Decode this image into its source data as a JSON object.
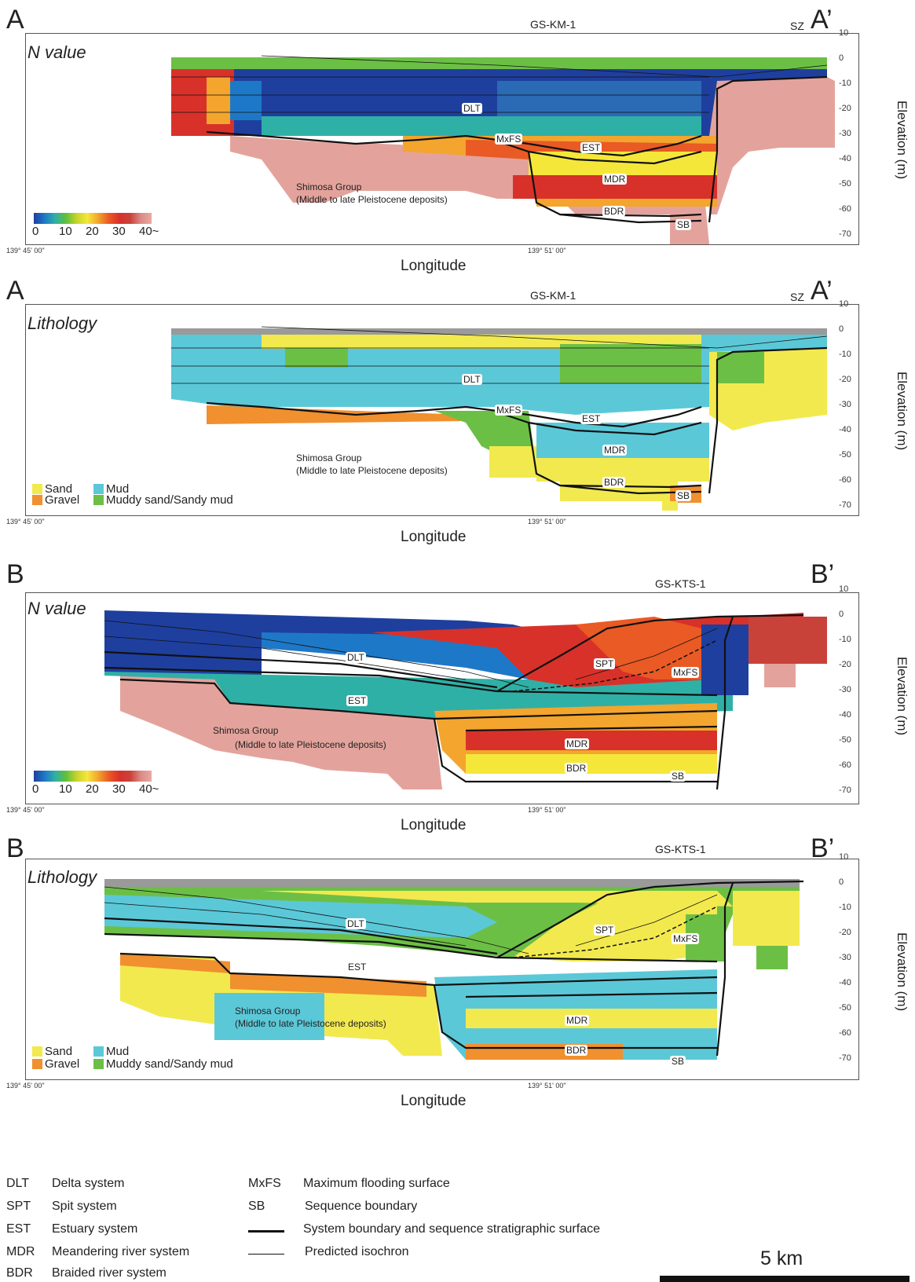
{
  "panels": [
    {
      "letter": "A",
      "letter_end": "A’",
      "title": "N value",
      "well": "GS-KM-1",
      "sz": "SZ",
      "x_start": "139° 45' 00\"",
      "x_mid": "139° 51' 00\"",
      "xlabel": "Longitude",
      "ylabel": "Elevation (m)",
      "yticks": [
        "10",
        "0",
        "-10",
        "-20",
        "-30",
        "-40",
        "-50",
        "-60",
        "-70"
      ],
      "units": [
        "DLT",
        "MxFS",
        "EST",
        "MDR",
        "BDR",
        "SB"
      ],
      "shimosa": [
        "Shimosa Group",
        "(Middle to late Pleistocene deposits)"
      ],
      "colorbar_labels": [
        "0",
        "10",
        "20",
        "30",
        "40~"
      ]
    },
    {
      "letter": "A",
      "letter_end": "A’",
      "title": "Lithology",
      "well": "GS-KM-1",
      "sz": "SZ",
      "x_start": "139° 45' 00\"",
      "x_mid": "139° 51' 00\"",
      "xlabel": "Longitude",
      "ylabel": "Elevation (m)",
      "yticks": [
        "10",
        "0",
        "-10",
        "-20",
        "-30",
        "-40",
        "-50",
        "-60",
        "-70"
      ],
      "units": [
        "DLT",
        "MxFS",
        "EST",
        "MDR",
        "BDR",
        "SB"
      ],
      "shimosa": [
        "Shimosa Group",
        "(Middle to late Pleistocene deposits)"
      ],
      "legend": [
        "Sand",
        "Mud",
        "Gravel",
        "Muddy sand/Sandy mud"
      ]
    },
    {
      "letter": "B",
      "letter_end": "B’",
      "title": "N value",
      "well": "GS-KTS-1",
      "x_start": "139° 45' 00\"",
      "x_mid": "139° 51' 00\"",
      "xlabel": "Longitude",
      "ylabel": "Elevation (m)",
      "yticks": [
        "10",
        "0",
        "-10",
        "-20",
        "-30",
        "-40",
        "-50",
        "-60",
        "-70"
      ],
      "units": [
        "DLT",
        "SPT",
        "MxFS",
        "EST",
        "MDR",
        "BDR",
        "SB"
      ],
      "shimosa": [
        "Shimosa Group",
        "(Middle to late Pleistocene deposits)"
      ],
      "colorbar_labels": [
        "0",
        "10",
        "20",
        "30",
        "40~"
      ]
    },
    {
      "letter": "B",
      "letter_end": "B’",
      "title": "Lithology",
      "well": "GS-KTS-1",
      "x_start": "139° 45' 00\"",
      "x_mid": "139° 51' 00\"",
      "xlabel": "Longitude",
      "ylabel": "Elevation (m)",
      "yticks": [
        "10",
        "0",
        "-10",
        "-20",
        "-30",
        "-40",
        "-50",
        "-60",
        "-70"
      ],
      "units": [
        "DLT",
        "SPT",
        "MxFS",
        "EST",
        "MDR",
        "BDR",
        "SB"
      ],
      "shimosa": [
        "Shimosa Group",
        "(Middle to late Pleistocene deposits)"
      ],
      "legend": [
        "Sand",
        "Mud",
        "Gravel",
        "Muddy sand/Sandy mud"
      ]
    }
  ],
  "colors": {
    "sand": "#f2e94e",
    "mud": "#5bc8d8",
    "gravel": "#f0902e",
    "muddy_sand": "#6cbf45",
    "blue_dark": "#1f3f9e",
    "shimosa": "#e3a39c",
    "gray_top": "#9a9a9a"
  },
  "abbreviations": {
    "left": [
      {
        "code": "DLT",
        "desc": "Delta system"
      },
      {
        "code": "SPT",
        "desc": "Spit system"
      },
      {
        "code": "EST",
        "desc": "Estuary system"
      },
      {
        "code": "MDR",
        "desc": "Meandering river system"
      },
      {
        "code": "BDR",
        "desc": "Braided river system"
      }
    ],
    "right": [
      {
        "code": "MxFS",
        "desc": "Maximum flooding surface"
      },
      {
        "code": "SB",
        "desc": "Sequence boundary"
      },
      {
        "code": "",
        "desc": "System boundary and sequence stratigraphic surface"
      },
      {
        "code": "",
        "desc": "Predicted isochron"
      }
    ]
  },
  "scale": "5 km"
}
